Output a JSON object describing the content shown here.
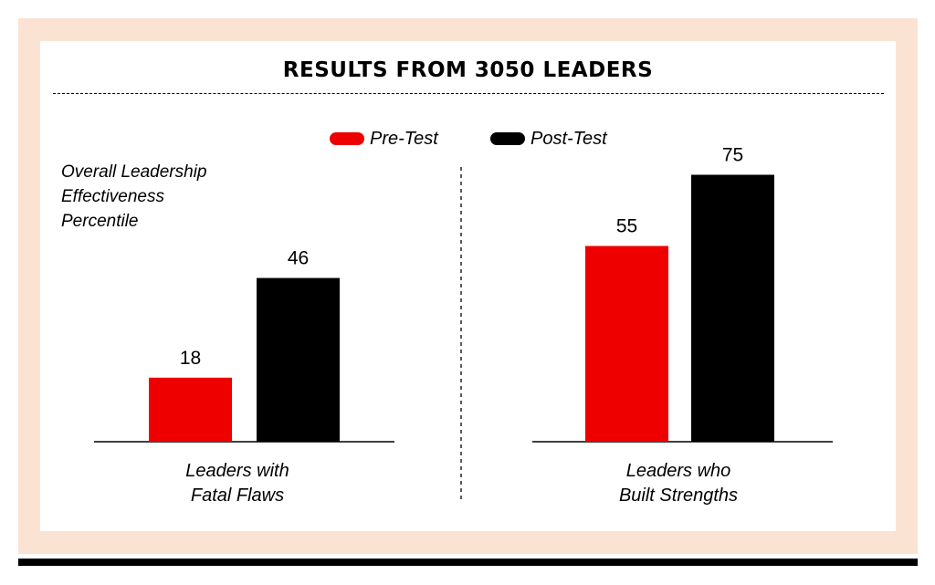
{
  "chart_data": {
    "type": "bar",
    "title": "RESULTS FROM 3050 LEADERS",
    "ylabel_lines": [
      "Overall Leadership",
      "Effectiveness",
      "Percentile"
    ],
    "categories": [
      {
        "lines": [
          "Leaders with",
          "Fatal Flaws"
        ]
      },
      {
        "lines": [
          "Leaders who",
          "Built Strengths"
        ]
      }
    ],
    "series": [
      {
        "name": "Pre-Test",
        "color": "#ee0000",
        "values": [
          18,
          55
        ]
      },
      {
        "name": "Post-Test",
        "color": "#000000",
        "values": [
          46,
          75
        ]
      }
    ],
    "ylim": [
      0,
      100
    ],
    "grid": false,
    "legend_position": "top-center"
  }
}
